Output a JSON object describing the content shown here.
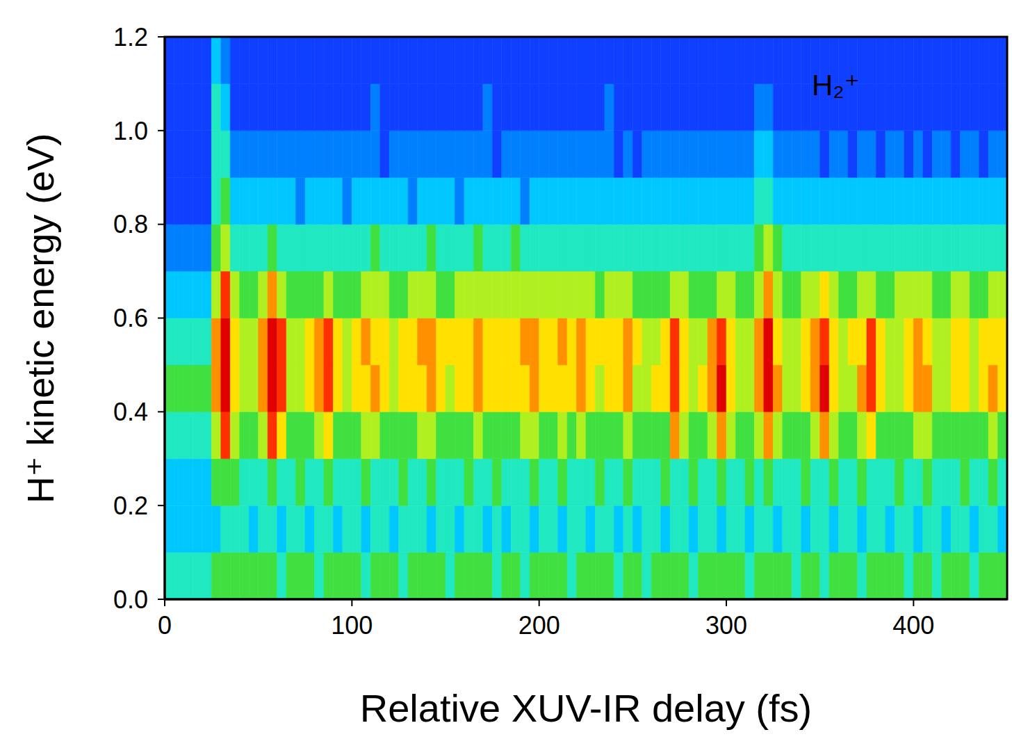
{
  "chart_data": {
    "type": "heatmap",
    "x_label": "Relative XUV-IR delay (fs)",
    "y_label": "H⁺ kinetic energy (eV)",
    "annotation": "H₂⁺",
    "xlim": [
      0,
      450
    ],
    "ylim": [
      0,
      1.2
    ],
    "xticks": [
      0,
      100,
      200,
      300,
      400
    ],
    "yticks": [
      {
        "value": 0,
        "label": "0.0"
      },
      0.2,
      0.4,
      0.6,
      0.8,
      {
        "value": 1,
        "label": "1.0"
      },
      1.2
    ],
    "grid": false,
    "zlim": [
      0,
      10
    ],
    "x_bins": [
      0,
      5,
      10,
      15,
      20,
      25,
      30,
      35,
      40,
      45,
      50,
      55,
      60,
      65,
      70,
      75,
      80,
      85,
      90,
      95,
      100,
      105,
      110,
      115,
      120,
      125,
      130,
      135,
      140,
      145,
      150,
      155,
      160,
      165,
      170,
      175,
      180,
      185,
      190,
      195,
      200,
      205,
      210,
      215,
      220,
      225,
      230,
      235,
      240,
      245,
      250,
      255,
      260,
      265,
      270,
      275,
      280,
      285,
      290,
      295,
      300,
      305,
      310,
      315,
      320,
      325,
      330,
      335,
      340,
      345,
      350,
      355,
      360,
      365,
      370,
      375,
      380,
      385,
      390,
      395,
      400,
      405,
      410,
      415,
      420,
      425,
      430,
      435,
      440,
      445,
      450
    ],
    "y_bins": [
      0,
      0.1,
      0.2,
      0.3,
      0.4,
      0.5,
      0.6,
      0.7,
      0.8,
      0.9,
      1,
      1.1,
      1.2
    ],
    "cells": [
      [
        4,
        4,
        4,
        4,
        4,
        5,
        5,
        5,
        5,
        5,
        5,
        5,
        4,
        5,
        5,
        5,
        4,
        5,
        5,
        5,
        5,
        4,
        5,
        5,
        5,
        4,
        5,
        5,
        5,
        5,
        4,
        5,
        5,
        5,
        5,
        4,
        5,
        5,
        4,
        5,
        5,
        5,
        5,
        4,
        5,
        5,
        5,
        5,
        4,
        5,
        5,
        4,
        5,
        5,
        5,
        5,
        4,
        5,
        5,
        5,
        5,
        5,
        4,
        5,
        5,
        5,
        5,
        4,
        5,
        5,
        4,
        5,
        5,
        5,
        4,
        5,
        5,
        5,
        5,
        4,
        5,
        5,
        4,
        5,
        5,
        5,
        4,
        5,
        5,
        5
      ],
      [
        3,
        3,
        3,
        3,
        3,
        3,
        4,
        4,
        4,
        3,
        4,
        4,
        3,
        4,
        4,
        3,
        4,
        4,
        3,
        4,
        4,
        3,
        4,
        4,
        3,
        4,
        4,
        4,
        3,
        4,
        4,
        3,
        4,
        4,
        3,
        4,
        3,
        4,
        4,
        3,
        4,
        4,
        3,
        4,
        4,
        3,
        4,
        4,
        3,
        4,
        3,
        4,
        4,
        3,
        4,
        4,
        3,
        4,
        4,
        3,
        4,
        4,
        3,
        4,
        4,
        3,
        4,
        4,
        3,
        4,
        4,
        3,
        4,
        4,
        3,
        4,
        4,
        3,
        4,
        4,
        3,
        4,
        4,
        3,
        4,
        4,
        3,
        4,
        4,
        3
      ],
      [
        3,
        3,
        3,
        3,
        3,
        5,
        5,
        5,
        4,
        4,
        4,
        5,
        4,
        4,
        5,
        4,
        4,
        5,
        4,
        4,
        4,
        5,
        4,
        4,
        4,
        5,
        4,
        4,
        5,
        4,
        4,
        4,
        5,
        4,
        4,
        5,
        4,
        4,
        4,
        5,
        4,
        4,
        5,
        4,
        4,
        4,
        5,
        4,
        4,
        5,
        4,
        4,
        4,
        5,
        4,
        4,
        5,
        4,
        4,
        5,
        4,
        4,
        5,
        4,
        5,
        4,
        4,
        4,
        5,
        4,
        4,
        5,
        4,
        4,
        5,
        4,
        4,
        4,
        5,
        4,
        4,
        5,
        4,
        4,
        4,
        5,
        4,
        4,
        5,
        4
      ],
      [
        4,
        4,
        4,
        4,
        4,
        6,
        9,
        6,
        5,
        5,
        6,
        9,
        7,
        5,
        5,
        5,
        6,
        7,
        5,
        5,
        5,
        6,
        6,
        5,
        5,
        5,
        5,
        6,
        6,
        5,
        5,
        5,
        5,
        6,
        5,
        5,
        5,
        5,
        6,
        6,
        5,
        5,
        6,
        5,
        6,
        5,
        5,
        5,
        5,
        6,
        5,
        5,
        5,
        5,
        8,
        6,
        5,
        5,
        6,
        8,
        6,
        5,
        5,
        6,
        8,
        6,
        5,
        5,
        5,
        6,
        8,
        6,
        5,
        5,
        6,
        7,
        5,
        5,
        5,
        5,
        6,
        6,
        5,
        5,
        5,
        5,
        5,
        5,
        6,
        5
      ],
      [
        5,
        5,
        5,
        5,
        5,
        8,
        10,
        7,
        6,
        6,
        8,
        10,
        9,
        6,
        6,
        7,
        8,
        9,
        7,
        6,
        7,
        7,
        8,
        7,
        6,
        7,
        7,
        7,
        8,
        7,
        6,
        7,
        7,
        8,
        7,
        7,
        7,
        7,
        7,
        8,
        7,
        7,
        7,
        7,
        8,
        7,
        6,
        7,
        7,
        8,
        6,
        6,
        7,
        7,
        9,
        7,
        6,
        7,
        8,
        10,
        7,
        6,
        6,
        8,
        10,
        8,
        6,
        6,
        7,
        8,
        10,
        7,
        6,
        6,
        8,
        9,
        7,
        6,
        6,
        7,
        8,
        8,
        6,
        6,
        7,
        7,
        6,
        7,
        8,
        7
      ],
      [
        4,
        4,
        4,
        4,
        4,
        8,
        10,
        7,
        6,
        6,
        8,
        10,
        9,
        6,
        6,
        7,
        8,
        9,
        7,
        6,
        7,
        8,
        7,
        7,
        6,
        7,
        7,
        8,
        8,
        7,
        7,
        7,
        7,
        8,
        7,
        7,
        7,
        7,
        8,
        8,
        7,
        7,
        8,
        7,
        8,
        7,
        7,
        7,
        7,
        8,
        7,
        6,
        6,
        7,
        9,
        7,
        6,
        6,
        8,
        9,
        7,
        6,
        6,
        8,
        10,
        7,
        6,
        6,
        7,
        8,
        9,
        7,
        6,
        7,
        7,
        9,
        7,
        6,
        6,
        7,
        8,
        7,
        6,
        6,
        7,
        7,
        6,
        7,
        7,
        7
      ],
      [
        3,
        3,
        3,
        3,
        3,
        6,
        9,
        6,
        5,
        5,
        6,
        8,
        6,
        5,
        5,
        5,
        5,
        6,
        5,
        5,
        5,
        6,
        6,
        6,
        5,
        5,
        6,
        6,
        6,
        5,
        5,
        6,
        6,
        6,
        6,
        6,
        6,
        6,
        6,
        6,
        6,
        6,
        6,
        6,
        6,
        6,
        5,
        6,
        6,
        6,
        5,
        5,
        5,
        5,
        6,
        6,
        5,
        5,
        5,
        6,
        6,
        5,
        5,
        6,
        8,
        6,
        5,
        5,
        6,
        6,
        7,
        6,
        5,
        5,
        6,
        6,
        5,
        5,
        6,
        6,
        6,
        6,
        5,
        5,
        6,
        6,
        5,
        5,
        6,
        6
      ],
      [
        2,
        2,
        2,
        2,
        2,
        5,
        6,
        4,
        4,
        4,
        4,
        5,
        4,
        4,
        4,
        4,
        4,
        4,
        4,
        4,
        4,
        4,
        5,
        4,
        4,
        4,
        4,
        4,
        5,
        4,
        4,
        4,
        4,
        5,
        4,
        4,
        4,
        5,
        4,
        4,
        4,
        4,
        4,
        4,
        4,
        4,
        4,
        4,
        4,
        4,
        4,
        4,
        4,
        4,
        4,
        4,
        4,
        4,
        4,
        4,
        4,
        4,
        4,
        5,
        6,
        5,
        4,
        4,
        4,
        4,
        4,
        4,
        4,
        4,
        4,
        4,
        4,
        4,
        4,
        4,
        4,
        4,
        4,
        4,
        4,
        4,
        4,
        4,
        4,
        4
      ],
      [
        1,
        1,
        1,
        1,
        1,
        4,
        5,
        3,
        3,
        3,
        3,
        3,
        3,
        3,
        2,
        3,
        3,
        3,
        3,
        2,
        3,
        3,
        3,
        3,
        3,
        3,
        2,
        3,
        3,
        3,
        3,
        2,
        3,
        3,
        3,
        3,
        3,
        3,
        2,
        3,
        3,
        3,
        3,
        3,
        3,
        3,
        3,
        3,
        3,
        3,
        3,
        3,
        3,
        3,
        3,
        3,
        3,
        3,
        3,
        3,
        3,
        3,
        3,
        4,
        4,
        3,
        3,
        3,
        3,
        3,
        3,
        3,
        3,
        3,
        3,
        3,
        3,
        3,
        3,
        3,
        3,
        3,
        3,
        3,
        3,
        3,
        3,
        3,
        3,
        3
      ],
      [
        1,
        1,
        1,
        1,
        1,
        4,
        4,
        2,
        2,
        2,
        2,
        2,
        2,
        2,
        2,
        2,
        2,
        2,
        2,
        2,
        2,
        2,
        2,
        1,
        2,
        2,
        2,
        2,
        2,
        2,
        2,
        2,
        2,
        2,
        2,
        1,
        2,
        2,
        2,
        2,
        2,
        2,
        2,
        2,
        2,
        2,
        2,
        2,
        1,
        2,
        1,
        2,
        2,
        2,
        2,
        2,
        2,
        2,
        2,
        2,
        2,
        2,
        2,
        3,
        3,
        2,
        2,
        2,
        2,
        2,
        1,
        2,
        2,
        1,
        2,
        2,
        1,
        2,
        2,
        1,
        2,
        1,
        2,
        2,
        1,
        2,
        2,
        1,
        2,
        2
      ],
      [
        1,
        1,
        1,
        1,
        1,
        4,
        3,
        1,
        1,
        1,
        1,
        1,
        1,
        1,
        1,
        1,
        1,
        1,
        1,
        1,
        1,
        1,
        2,
        1,
        1,
        1,
        1,
        1,
        1,
        1,
        1,
        1,
        1,
        1,
        2,
        1,
        1,
        1,
        1,
        1,
        1,
        1,
        1,
        1,
        1,
        1,
        1,
        2,
        1,
        1,
        1,
        1,
        1,
        1,
        1,
        1,
        1,
        1,
        1,
        1,
        1,
        1,
        1,
        2,
        2,
        1,
        1,
        1,
        1,
        1,
        1,
        1,
        1,
        1,
        1,
        1,
        1,
        1,
        1,
        1,
        1,
        1,
        1,
        1,
        1,
        1,
        1,
        1,
        1,
        1
      ],
      [
        1,
        1,
        1,
        1,
        1,
        3,
        2,
        1,
        1,
        1,
        1,
        1,
        1,
        1,
        1,
        1,
        1,
        1,
        1,
        1,
        1,
        1,
        1,
        1,
        1,
        1,
        1,
        1,
        1,
        1,
        1,
        1,
        1,
        1,
        1,
        1,
        1,
        1,
        1,
        1,
        1,
        1,
        1,
        1,
        1,
        1,
        1,
        1,
        1,
        1,
        1,
        1,
        1,
        1,
        1,
        1,
        1,
        1,
        1,
        1,
        1,
        1,
        1,
        1,
        1,
        1,
        1,
        1,
        1,
        1,
        1,
        1,
        1,
        1,
        1,
        1,
        1,
        1,
        1,
        1,
        1,
        1,
        1,
        1,
        1,
        1,
        1,
        1,
        1,
        1
      ]
    ]
  }
}
